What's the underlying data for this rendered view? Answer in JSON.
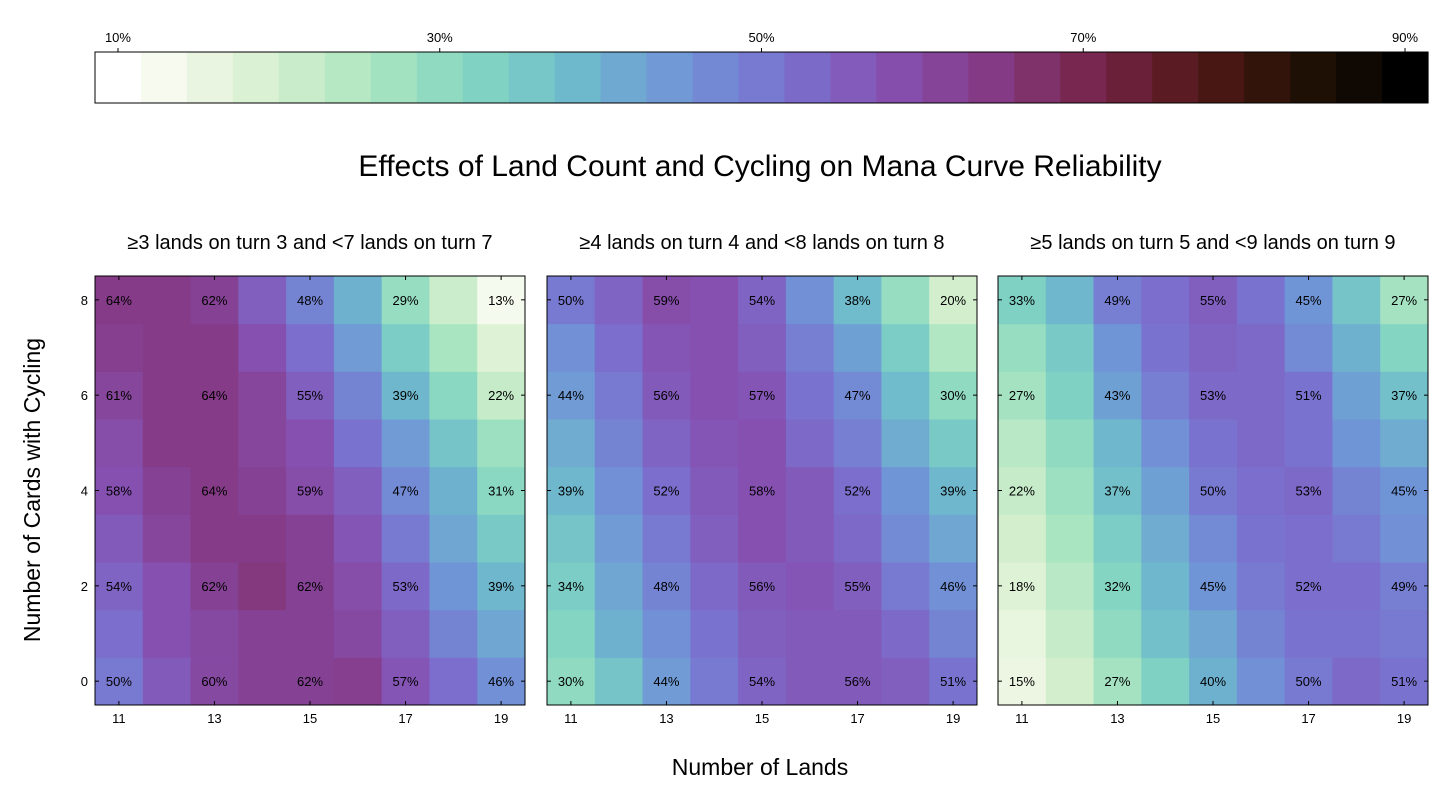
{
  "chart_data": {
    "type": "heatmap",
    "title": "Effects of Land Count and Cycling on Mana Curve Reliability",
    "xlabel": "Number of Lands",
    "ylabel": "Number of Cards with Cycling",
    "colorbar": {
      "min": 0.1,
      "max": 0.9,
      "ticks": [
        "10%",
        "30%",
        "50%",
        "70%",
        "90%"
      ],
      "tick_values": [
        0.1,
        0.3,
        0.5,
        0.7,
        0.9
      ],
      "placement": "top"
    },
    "x_values": [
      11,
      12,
      13,
      14,
      15,
      16,
      17,
      18,
      19
    ],
    "y_values": [
      0,
      1,
      2,
      3,
      4,
      5,
      6,
      7,
      8
    ],
    "x_ticks": [
      "11",
      "13",
      "15",
      "17",
      "19"
    ],
    "y_ticks": [
      "0",
      "2",
      "4",
      "6",
      "8"
    ],
    "panels": [
      {
        "title": "≥3 lands on turn 3 and <7 lands on turn 7",
        "rows": [
          [
            0.5,
            0.56,
            0.6,
            0.62,
            0.62,
            0.63,
            0.57,
            0.52,
            0.46
          ],
          [
            0.52,
            0.58,
            0.6,
            0.62,
            0.62,
            0.6,
            0.55,
            0.48,
            0.42
          ],
          [
            0.54,
            0.58,
            0.62,
            0.65,
            0.62,
            0.59,
            0.53,
            0.45,
            0.39
          ],
          [
            0.56,
            0.61,
            0.64,
            0.64,
            0.62,
            0.57,
            0.5,
            0.42,
            0.35
          ],
          [
            0.58,
            0.62,
            0.64,
            0.62,
            0.59,
            0.55,
            0.47,
            0.4,
            0.31
          ],
          [
            0.59,
            0.64,
            0.64,
            0.61,
            0.58,
            0.51,
            0.44,
            0.36,
            0.28
          ],
          [
            0.61,
            0.64,
            0.64,
            0.61,
            0.55,
            0.48,
            0.39,
            0.31,
            0.22
          ],
          [
            0.63,
            0.64,
            0.64,
            0.58,
            0.52,
            0.44,
            0.34,
            0.26,
            0.18
          ],
          [
            0.64,
            0.64,
            0.62,
            0.55,
            0.48,
            0.4,
            0.29,
            0.21,
            0.13
          ]
        ]
      },
      {
        "title": "≥4 lands on turn 4 and <8 lands on turn 8",
        "rows": [
          [
            0.3,
            0.36,
            0.44,
            0.5,
            0.54,
            0.56,
            0.56,
            0.55,
            0.51
          ],
          [
            0.32,
            0.4,
            0.46,
            0.51,
            0.55,
            0.56,
            0.56,
            0.53,
            0.48
          ],
          [
            0.34,
            0.42,
            0.48,
            0.53,
            0.56,
            0.57,
            0.55,
            0.5,
            0.46
          ],
          [
            0.36,
            0.44,
            0.5,
            0.55,
            0.58,
            0.56,
            0.53,
            0.47,
            0.42
          ],
          [
            0.39,
            0.46,
            0.52,
            0.56,
            0.58,
            0.56,
            0.52,
            0.45,
            0.39
          ],
          [
            0.41,
            0.48,
            0.54,
            0.57,
            0.58,
            0.53,
            0.49,
            0.41,
            0.35
          ],
          [
            0.44,
            0.5,
            0.56,
            0.58,
            0.57,
            0.51,
            0.47,
            0.38,
            0.3
          ],
          [
            0.46,
            0.52,
            0.57,
            0.58,
            0.55,
            0.49,
            0.43,
            0.34,
            0.25
          ],
          [
            0.5,
            0.54,
            0.59,
            0.58,
            0.54,
            0.46,
            0.38,
            0.29,
            0.2
          ]
        ]
      },
      {
        "title": "≥5 lands on turn 5 and <9 lands on turn 9",
        "rows": [
          [
            0.15,
            0.2,
            0.27,
            0.33,
            0.4,
            0.46,
            0.5,
            0.53,
            0.51
          ],
          [
            0.16,
            0.22,
            0.3,
            0.37,
            0.42,
            0.48,
            0.51,
            0.51,
            0.5
          ],
          [
            0.18,
            0.24,
            0.32,
            0.39,
            0.45,
            0.5,
            0.52,
            0.52,
            0.49
          ],
          [
            0.2,
            0.26,
            0.34,
            0.41,
            0.47,
            0.51,
            0.52,
            0.5,
            0.46
          ],
          [
            0.22,
            0.28,
            0.37,
            0.43,
            0.5,
            0.52,
            0.53,
            0.48,
            0.45
          ],
          [
            0.24,
            0.3,
            0.39,
            0.46,
            0.51,
            0.53,
            0.51,
            0.45,
            0.41
          ],
          [
            0.27,
            0.33,
            0.43,
            0.49,
            0.53,
            0.53,
            0.51,
            0.43,
            0.37
          ],
          [
            0.29,
            0.35,
            0.45,
            0.51,
            0.54,
            0.53,
            0.47,
            0.4,
            0.32
          ],
          [
            0.33,
            0.39,
            0.49,
            0.52,
            0.55,
            0.51,
            0.45,
            0.36,
            0.27
          ]
        ]
      }
    ]
  }
}
